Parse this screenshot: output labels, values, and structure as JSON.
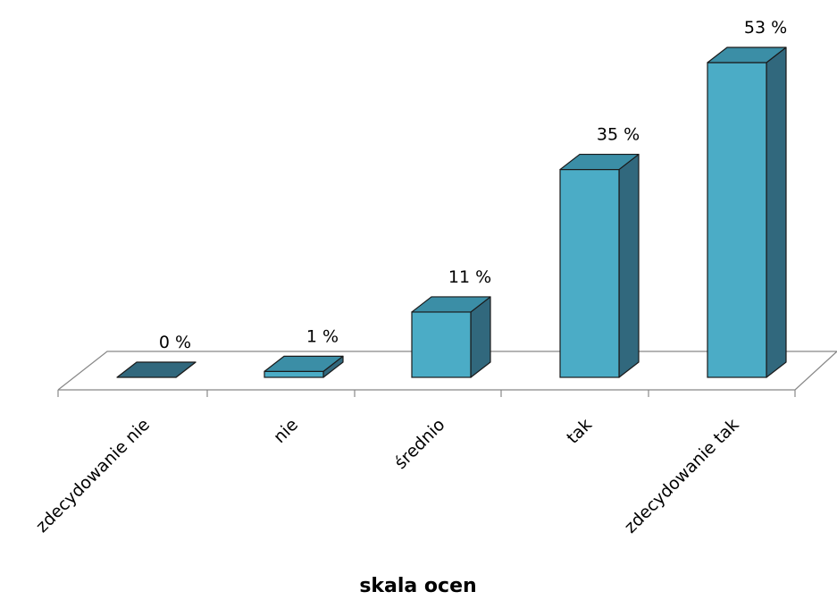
{
  "chart_data": {
    "type": "bar",
    "style": "3d-column",
    "categories": [
      "zdecydowanie nie",
      "nie",
      "średnio",
      "tak",
      "zdecydowanie tak"
    ],
    "values": [
      0,
      1,
      11,
      35,
      53
    ],
    "data_labels": [
      "0 %",
      "1 %",
      "11 %",
      "35 %",
      "53 %"
    ],
    "xlabel": "skala ocen",
    "ylabel": "",
    "unit": "%",
    "ylim": [
      0,
      53
    ],
    "grid": false,
    "legend": "none",
    "colors": {
      "front": "#4bacc6",
      "side": "#31687d",
      "top": "#3b8ea6",
      "edge": "#1a1a1a",
      "floor_edge": "#888888"
    }
  }
}
